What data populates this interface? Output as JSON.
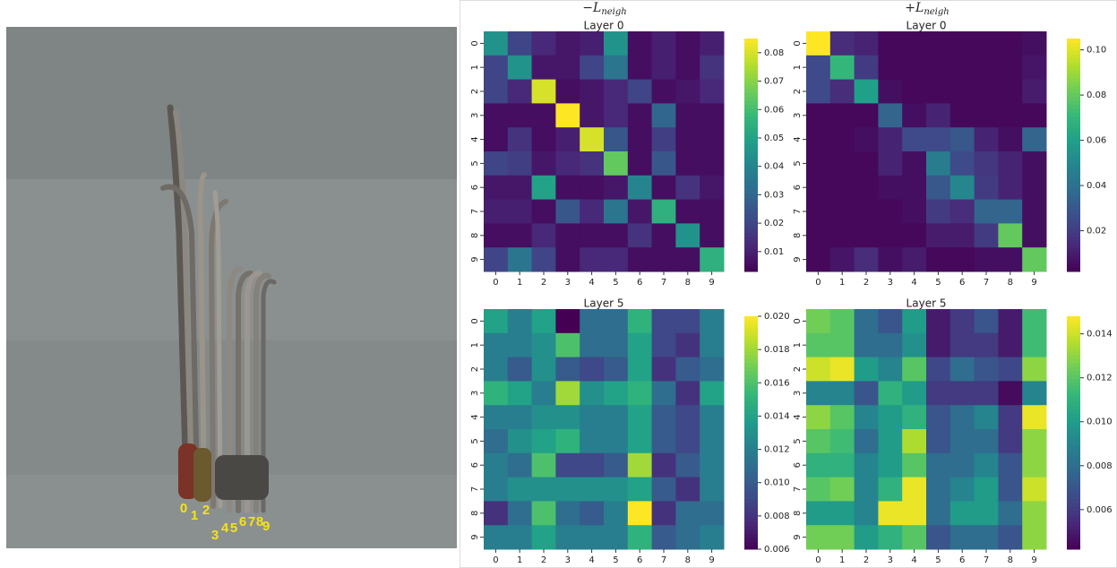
{
  "column_titles": [
    {
      "main": "−L",
      "sub": "neigh"
    },
    {
      "main": "+L",
      "sub": "neigh"
    }
  ],
  "photo": {
    "labels": [
      "0",
      "1",
      "2",
      "3",
      "4",
      "5",
      "6",
      "7",
      "8",
      "9"
    ]
  },
  "chart_data": [
    {
      "type": "heatmap",
      "title": "Layer 0",
      "colormap": "viridis",
      "categories": [
        "0",
        "1",
        "2",
        "3",
        "4",
        "5",
        "6",
        "7",
        "8",
        "9"
      ],
      "clim": [
        0.003,
        0.085
      ],
      "cticks": [
        0.01,
        0.02,
        0.03,
        0.04,
        0.05,
        0.06,
        0.07,
        0.08
      ],
      "values": [
        [
          0.045,
          0.02,
          0.012,
          0.008,
          0.01,
          0.045,
          0.006,
          0.01,
          0.006,
          0.01
        ],
        [
          0.02,
          0.045,
          0.008,
          0.008,
          0.02,
          0.035,
          0.006,
          0.01,
          0.006,
          0.015
        ],
        [
          0.02,
          0.012,
          0.08,
          0.006,
          0.008,
          0.012,
          0.02,
          0.006,
          0.008,
          0.012
        ],
        [
          0.006,
          0.006,
          0.006,
          0.085,
          0.008,
          0.012,
          0.006,
          0.03,
          0.006,
          0.006
        ],
        [
          0.006,
          0.015,
          0.006,
          0.01,
          0.08,
          0.025,
          0.006,
          0.018,
          0.006,
          0.006
        ],
        [
          0.02,
          0.018,
          0.008,
          0.012,
          0.015,
          0.065,
          0.006,
          0.025,
          0.006,
          0.006
        ],
        [
          0.008,
          0.008,
          0.05,
          0.006,
          0.006,
          0.008,
          0.04,
          0.006,
          0.015,
          0.008
        ],
        [
          0.01,
          0.01,
          0.006,
          0.025,
          0.012,
          0.035,
          0.008,
          0.055,
          0.006,
          0.006
        ],
        [
          0.006,
          0.006,
          0.012,
          0.006,
          0.006,
          0.006,
          0.015,
          0.006,
          0.045,
          0.006
        ],
        [
          0.02,
          0.035,
          0.02,
          0.006,
          0.012,
          0.012,
          0.006,
          0.006,
          0.006,
          0.055
        ]
      ]
    },
    {
      "type": "heatmap",
      "title": "Layer 0",
      "colormap": "viridis",
      "categories": [
        "0",
        "1",
        "2",
        "3",
        "4",
        "5",
        "6",
        "7",
        "8",
        "9"
      ],
      "clim": [
        0.002,
        0.105
      ],
      "cticks": [
        0.02,
        0.04,
        0.06,
        0.08,
        {
          "value": 0.1,
          "label": "0.10"
        }
      ],
      "values": [
        [
          0.105,
          0.015,
          0.012,
          0.004,
          0.004,
          0.004,
          0.004,
          0.004,
          0.004,
          0.006
        ],
        [
          0.025,
          0.07,
          0.02,
          0.004,
          0.004,
          0.004,
          0.004,
          0.004,
          0.004,
          0.008
        ],
        [
          0.025,
          0.015,
          0.06,
          0.006,
          0.004,
          0.004,
          0.004,
          0.004,
          0.004,
          0.01
        ],
        [
          0.004,
          0.004,
          0.004,
          0.035,
          0.006,
          0.012,
          0.004,
          0.004,
          0.004,
          0.004
        ],
        [
          0.004,
          0.004,
          0.006,
          0.012,
          0.025,
          0.025,
          0.03,
          0.012,
          0.006,
          0.035
        ],
        [
          0.004,
          0.004,
          0.004,
          0.012,
          0.006,
          0.045,
          0.025,
          0.018,
          0.012,
          0.006
        ],
        [
          0.004,
          0.004,
          0.004,
          0.006,
          0.006,
          0.03,
          0.05,
          0.02,
          0.012,
          0.006
        ],
        [
          0.004,
          0.004,
          0.004,
          0.004,
          0.006,
          0.02,
          0.015,
          0.035,
          0.035,
          0.006
        ],
        [
          0.004,
          0.004,
          0.004,
          0.004,
          0.004,
          0.01,
          0.01,
          0.02,
          0.08,
          0.006
        ],
        [
          0.004,
          0.008,
          0.015,
          0.006,
          0.01,
          0.004,
          0.004,
          0.006,
          0.006,
          0.08
        ]
      ]
    },
    {
      "type": "heatmap",
      "title": "Layer 5",
      "colormap": "viridis",
      "categories": [
        "0",
        "1",
        "2",
        "3",
        "4",
        "5",
        "6",
        "7",
        "8",
        "9"
      ],
      "clim": [
        0.006,
        0.02
      ],
      "cticks": [
        0.006,
        0.008,
        {
          "value": 0.01,
          "label": "0.010"
        },
        0.012,
        0.014,
        0.016,
        0.018,
        {
          "value": 0.02,
          "label": "0.020"
        }
      ],
      "values": [
        [
          0.014,
          0.012,
          0.014,
          0.006,
          0.011,
          0.011,
          0.015,
          0.009,
          0.009,
          0.012
        ],
        [
          0.012,
          0.012,
          0.013,
          0.016,
          0.011,
          0.011,
          0.014,
          0.009,
          0.008,
          0.012
        ],
        [
          0.012,
          0.01,
          0.013,
          0.01,
          0.009,
          0.01,
          0.014,
          0.008,
          0.01,
          0.011
        ],
        [
          0.015,
          0.014,
          0.012,
          0.018,
          0.013,
          0.014,
          0.015,
          0.011,
          0.008,
          0.014
        ],
        [
          0.012,
          0.012,
          0.013,
          0.013,
          0.012,
          0.012,
          0.014,
          0.01,
          0.009,
          0.012
        ],
        [
          0.011,
          0.013,
          0.014,
          0.015,
          0.012,
          0.012,
          0.014,
          0.01,
          0.009,
          0.012
        ],
        [
          0.012,
          0.011,
          0.016,
          0.009,
          0.009,
          0.01,
          0.018,
          0.008,
          0.01,
          0.012
        ],
        [
          0.012,
          0.013,
          0.013,
          0.013,
          0.013,
          0.013,
          0.014,
          0.01,
          0.008,
          0.012
        ],
        [
          0.008,
          0.011,
          0.016,
          0.011,
          0.01,
          0.012,
          0.02,
          0.008,
          0.011,
          0.011
        ],
        [
          0.012,
          0.012,
          0.014,
          0.012,
          0.012,
          0.012,
          0.015,
          0.01,
          0.011,
          0.012
        ]
      ]
    },
    {
      "type": "heatmap",
      "title": "Layer 5",
      "colormap": "viridis",
      "categories": [
        "0",
        "1",
        "2",
        "3",
        "4",
        "5",
        "6",
        "7",
        "8",
        "9"
      ],
      "clim": [
        0.0042,
        0.0148
      ],
      "cticks": [
        0.006,
        0.008,
        {
          "value": 0.01,
          "label": "0.010"
        },
        0.012,
        0.014
      ],
      "values": [
        [
          0.0125,
          0.012,
          0.008,
          0.007,
          0.01,
          0.005,
          0.006,
          0.007,
          0.005,
          0.0115
        ],
        [
          0.012,
          0.012,
          0.008,
          0.008,
          0.0095,
          0.005,
          0.006,
          0.006,
          0.005,
          0.0115
        ],
        [
          0.014,
          0.0145,
          0.01,
          0.009,
          0.012,
          0.0065,
          0.008,
          0.007,
          0.0065,
          0.013
        ],
        [
          0.009,
          0.009,
          0.007,
          0.011,
          0.01,
          0.006,
          0.006,
          0.006,
          0.0045,
          0.009
        ],
        [
          0.013,
          0.012,
          0.009,
          0.01,
          0.011,
          0.007,
          0.008,
          0.009,
          0.006,
          0.0145
        ],
        [
          0.012,
          0.0115,
          0.008,
          0.01,
          0.0135,
          0.007,
          0.008,
          0.008,
          0.006,
          0.013
        ],
        [
          0.011,
          0.011,
          0.009,
          0.01,
          0.012,
          0.008,
          0.008,
          0.009,
          0.007,
          0.013
        ],
        [
          0.012,
          0.0125,
          0.009,
          0.011,
          0.0145,
          0.008,
          0.009,
          0.01,
          0.007,
          0.014
        ],
        [
          0.01,
          0.01,
          0.009,
          0.0145,
          0.0145,
          0.008,
          0.01,
          0.01,
          0.008,
          0.013
        ],
        [
          0.0125,
          0.0125,
          0.01,
          0.011,
          0.012,
          0.007,
          0.008,
          0.008,
          0.007,
          0.013
        ]
      ]
    }
  ]
}
